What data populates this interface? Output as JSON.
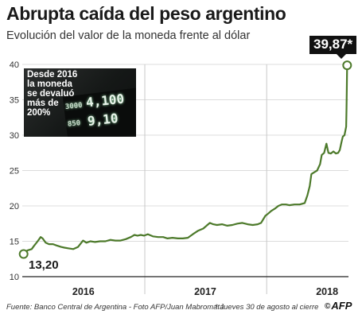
{
  "header": {
    "title": "Abrupta caída del peso argentino",
    "subtitle": "Evolución del valor de la moneda frente al dólar"
  },
  "photo": {
    "caption": "Desde 2016 la moneda se devaluó más de 200%",
    "board_values": [
      "4,100",
      "9,10",
      "3000",
      "850"
    ]
  },
  "annotations": {
    "start_value": "13,20",
    "end_value": "39,87*"
  },
  "footer": {
    "source": "Fuente: Banco Central de Argentina - Foto AFP/Juan Mabromata",
    "note": "* Jueves 30 de agosto al cierre",
    "logo": "AFP",
    "logo_mark": "©"
  },
  "colors": {
    "line": "#4d7a2b",
    "marker_fill": "#ffffff",
    "grid": "#dcdcdc",
    "year_divider": "#c8c8c8",
    "axis": "#222222",
    "callout_bg": "#111111"
  },
  "chart_data": {
    "type": "line",
    "title": "Abrupta caída del peso argentino",
    "subtitle": "Evolución del valor de la moneda frente al dólar",
    "xlabel": "",
    "ylabel": "",
    "x_type": "date",
    "xlim": [
      "2015-12-31",
      "2018-09-03"
    ],
    "ylim": [
      10,
      40
    ],
    "yticks": [
      "10",
      "15",
      "20",
      "25",
      "30",
      "35",
      "40"
    ],
    "xticks": [
      {
        "label": "2016",
        "date": "2016-07-01"
      },
      {
        "label": "2017",
        "date": "2017-07-01"
      },
      {
        "label": "2018",
        "date": "2018-07-01"
      }
    ],
    "year_dividers": [
      "2017-01-01",
      "2018-01-01"
    ],
    "grid": "horizontal",
    "series": [
      {
        "x": [
          "2016-01-04",
          "2016-01-15",
          "2016-01-28",
          "2016-02-05",
          "2016-02-15",
          "2016-02-24",
          "2016-03-01",
          "2016-03-10",
          "2016-03-20",
          "2016-04-01",
          "2016-04-12",
          "2016-04-25",
          "2016-05-05",
          "2016-05-18",
          "2016-06-01",
          "2016-06-15",
          "2016-06-30",
          "2016-07-10",
          "2016-07-22",
          "2016-08-05",
          "2016-08-20",
          "2016-09-05",
          "2016-09-20",
          "2016-10-05",
          "2016-10-20",
          "2016-11-05",
          "2016-11-20",
          "2016-12-01",
          "2016-12-10",
          "2016-12-20",
          "2016-12-30",
          "2017-01-10",
          "2017-01-25",
          "2017-02-10",
          "2017-02-25",
          "2017-03-10",
          "2017-03-25",
          "2017-04-10",
          "2017-04-25",
          "2017-05-10",
          "2017-05-25",
          "2017-06-10",
          "2017-06-25",
          "2017-07-05",
          "2017-07-15",
          "2017-07-25",
          "2017-08-05",
          "2017-08-20",
          "2017-09-05",
          "2017-09-20",
          "2017-10-05",
          "2017-10-20",
          "2017-11-05",
          "2017-11-20",
          "2017-12-05",
          "2017-12-15",
          "2017-12-28",
          "2018-01-05",
          "2018-01-15",
          "2018-01-25",
          "2018-02-05",
          "2018-02-15",
          "2018-02-28",
          "2018-03-10",
          "2018-03-25",
          "2018-04-10",
          "2018-04-25",
          "2018-05-03",
          "2018-05-10",
          "2018-05-15",
          "2018-05-25",
          "2018-06-01",
          "2018-06-10",
          "2018-06-15",
          "2018-06-22",
          "2018-06-29",
          "2018-07-05",
          "2018-07-12",
          "2018-07-20",
          "2018-07-27",
          "2018-08-03",
          "2018-08-08",
          "2018-08-13",
          "2018-08-17",
          "2018-08-22",
          "2018-08-27",
          "2018-08-28",
          "2018-08-29",
          "2018-08-30"
        ],
        "y": [
          13.2,
          13.7,
          13.9,
          14.4,
          15.0,
          15.6,
          15.4,
          14.8,
          14.6,
          14.6,
          14.4,
          14.2,
          14.1,
          14.0,
          13.9,
          14.2,
          15.1,
          14.8,
          15.0,
          14.9,
          15.0,
          15.0,
          15.2,
          15.1,
          15.1,
          15.3,
          15.6,
          15.9,
          15.8,
          15.9,
          15.8,
          16.0,
          15.7,
          15.6,
          15.6,
          15.4,
          15.5,
          15.4,
          15.4,
          15.5,
          16.0,
          16.5,
          16.8,
          17.2,
          17.6,
          17.4,
          17.3,
          17.4,
          17.2,
          17.3,
          17.5,
          17.6,
          17.4,
          17.3,
          17.4,
          17.6,
          18.6,
          18.9,
          19.3,
          19.6,
          20.0,
          20.2,
          20.2,
          20.1,
          20.2,
          20.2,
          20.4,
          21.5,
          22.8,
          24.5,
          24.8,
          25.0,
          25.9,
          27.2,
          27.5,
          28.8,
          27.5,
          27.4,
          27.7,
          27.4,
          27.5,
          27.9,
          29.0,
          29.8,
          30.0,
          31.2,
          33.5,
          36.5,
          39.87
        ]
      }
    ],
    "annotations": [
      {
        "text": "13,20",
        "x": "2016-01-04",
        "y": 13.2
      },
      {
        "text": "39,87*",
        "x": "2018-08-30",
        "y": 39.87
      }
    ]
  }
}
